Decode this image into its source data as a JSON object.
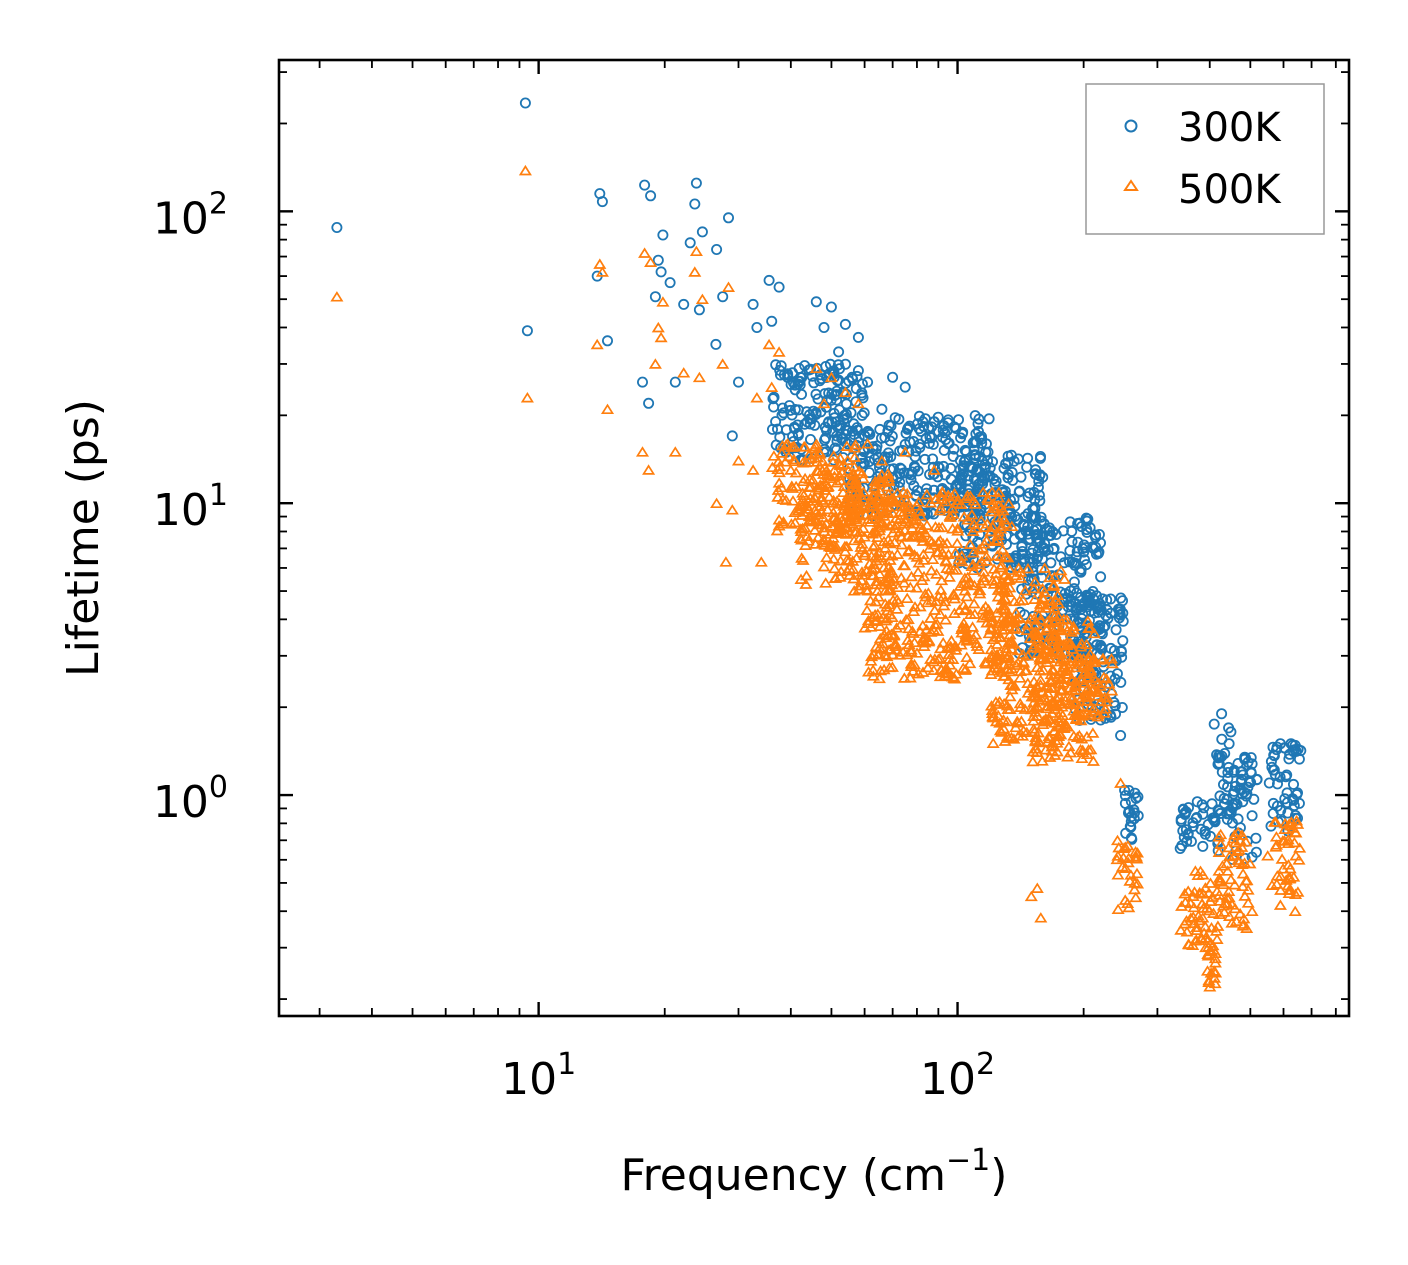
{
  "chart_data": {
    "type": "scatter",
    "title": "",
    "xlabel": "Frequency (cm",
    "xlabel_sup": "−1",
    "xlabel_close": ")",
    "ylabel": "Lifetime (ps)",
    "xscale": "log",
    "yscale": "log",
    "xlim": [
      2.4,
      860
    ],
    "ylim": [
      0.175,
      330
    ],
    "x_ticks": [
      {
        "value": 10,
        "base": "10",
        "exp": "1"
      },
      {
        "value": 100,
        "base": "10",
        "exp": "2"
      }
    ],
    "y_ticks": [
      {
        "value": 1,
        "base": "10",
        "exp": "0"
      },
      {
        "value": 10,
        "base": "10",
        "exp": "1"
      },
      {
        "value": 100,
        "base": "10",
        "exp": "2"
      }
    ],
    "legend_position": "top-right",
    "series": [
      {
        "name": "300K",
        "marker": "circle",
        "color": "#1f77b4",
        "points": [
          [
            3.3,
            88
          ],
          [
            9.3,
            235
          ],
          [
            9.4,
            39
          ],
          [
            13.8,
            60
          ],
          [
            14,
            115
          ],
          [
            14.2,
            108
          ],
          [
            14.6,
            36
          ],
          [
            17.7,
            26
          ],
          [
            17.9,
            123
          ],
          [
            18.3,
            22
          ],
          [
            18.5,
            113
          ],
          [
            19,
            51
          ],
          [
            19.3,
            68
          ],
          [
            19.6,
            62
          ],
          [
            19.8,
            83
          ],
          [
            20.6,
            57
          ],
          [
            21.2,
            26
          ],
          [
            22.2,
            48
          ],
          [
            23,
            78
          ],
          [
            23.6,
            106
          ],
          [
            23.8,
            125
          ],
          [
            24.2,
            46
          ],
          [
            24.6,
            85
          ],
          [
            26.6,
            74
          ],
          [
            26.5,
            35
          ],
          [
            27.5,
            51
          ],
          [
            28.4,
            95
          ],
          [
            29,
            17
          ],
          [
            30,
            26
          ],
          [
            32.5,
            48
          ],
          [
            33.2,
            40
          ],
          [
            35.5,
            58
          ],
          [
            36,
            42
          ],
          [
            37.5,
            55
          ],
          [
            39.3,
            27
          ],
          [
            46,
            49
          ],
          [
            48,
            40
          ],
          [
            50,
            47
          ],
          [
            52,
            33
          ],
          [
            54,
            41
          ],
          [
            56,
            27
          ],
          [
            58,
            37
          ],
          [
            61,
            26
          ],
          [
            66,
            21
          ],
          [
            70,
            27
          ],
          [
            75,
            25
          ],
          [
            81,
            18
          ],
          [
            88,
            19
          ],
          [
            95,
            16
          ],
          [
            105,
            15
          ],
          [
            118,
            14
          ],
          [
            130,
            11
          ],
          [
            150,
            9
          ],
          [
            170,
            7
          ],
          [
            185,
            6.3
          ],
          [
            197,
            5.8
          ],
          [
            205,
            4.6
          ],
          [
            225,
            3.8
          ],
          [
            235,
            2.9
          ],
          [
            245,
            1.6
          ],
          [
            260,
            0.95
          ],
          [
            270,
            0.85
          ],
          [
            355,
            0.73
          ],
          [
            385,
            0.86
          ],
          [
            410,
            1.75
          ],
          [
            427,
            1.9
          ],
          [
            445,
            1.5
          ],
          [
            475,
            1.2
          ],
          [
            505,
            0.85
          ],
          [
            555,
            1.1
          ],
          [
            590,
            1.5
          ],
          [
            640,
            1.48
          ],
          [
            660,
            1.42
          ]
        ],
        "bands": [
          {
            "x": [
              36,
              60
            ],
            "y": [
              14,
              30
            ]
          },
          {
            "x": [
              55,
              120
            ],
            "y": [
              9,
              20
            ]
          },
          {
            "x": [
              100,
              160
            ],
            "y": [
              6,
              15
            ]
          },
          {
            "x": [
              140,
              220
            ],
            "y": [
              3,
              9
            ]
          },
          {
            "x": [
              190,
              250
            ],
            "y": [
              1.8,
              5
            ]
          },
          {
            "x": [
              250,
              270
            ],
            "y": [
              0.7,
              1.1
            ]
          },
          {
            "x": [
              340,
              420
            ],
            "y": [
              0.62,
              0.95
            ]
          },
          {
            "x": [
              415,
              450
            ],
            "y": [
              0.8,
              1.9
            ]
          },
          {
            "x": [
              450,
              520
            ],
            "y": [
              0.6,
              1.35
            ]
          },
          {
            "x": [
              560,
              660
            ],
            "y": [
              0.75,
              1.5
            ]
          }
        ]
      },
      {
        "name": "500K",
        "marker": "triangle",
        "color": "#ff7f0e",
        "points": [
          [
            3.3,
            51
          ],
          [
            9.3,
            138
          ],
          [
            9.4,
            23
          ],
          [
            13.8,
            35
          ],
          [
            14,
            66
          ],
          [
            14.2,
            62
          ],
          [
            14.6,
            21
          ],
          [
            17.7,
            15
          ],
          [
            17.9,
            72
          ],
          [
            18.3,
            13
          ],
          [
            18.5,
            67
          ],
          [
            19,
            30
          ],
          [
            19.3,
            40
          ],
          [
            19.6,
            37
          ],
          [
            19.8,
            49
          ],
          [
            21.2,
            15
          ],
          [
            22.2,
            28
          ],
          [
            23.6,
            62
          ],
          [
            23.8,
            73
          ],
          [
            24.2,
            27
          ],
          [
            24.6,
            50
          ],
          [
            26.6,
            10
          ],
          [
            27.5,
            30
          ],
          [
            28.4,
            55
          ],
          [
            29,
            9.5
          ],
          [
            30,
            14
          ],
          [
            32.5,
            13
          ],
          [
            33.2,
            23
          ],
          [
            35.5,
            35
          ],
          [
            36,
            25
          ],
          [
            37.5,
            33
          ],
          [
            39.3,
            16
          ],
          [
            28,
            6.3
          ],
          [
            34,
            6.3
          ],
          [
            46,
            29
          ],
          [
            48,
            22
          ],
          [
            50,
            27
          ],
          [
            54,
            24
          ],
          [
            58,
            22
          ],
          [
            61,
            16
          ],
          [
            66,
            14
          ],
          [
            75,
            15
          ],
          [
            88,
            13
          ],
          [
            100,
            10
          ],
          [
            120,
            8
          ],
          [
            140,
            6
          ],
          [
            155,
            0.48
          ],
          [
            158,
            0.38
          ],
          [
            150,
            0.45
          ],
          [
            170,
            3.5
          ],
          [
            185,
            3.3
          ],
          [
            200,
            2.6
          ],
          [
            220,
            2.1
          ],
          [
            245,
            1.1
          ],
          [
            265,
            0.5
          ],
          [
            350,
            0.43
          ],
          [
            385,
            0.38
          ],
          [
            395,
            0.25
          ],
          [
            410,
            0.25
          ],
          [
            425,
            0.68
          ],
          [
            470,
            0.65
          ],
          [
            490,
            0.35
          ],
          [
            505,
            0.4
          ],
          [
            550,
            0.62
          ],
          [
            590,
            0.42
          ],
          [
            640,
            0.4
          ]
        ],
        "bands": [
          {
            "x": [
              36,
              58
            ],
            "y": [
              8,
              16
            ]
          },
          {
            "x": [
              42,
              70
            ],
            "y": [
              5,
              13
            ]
          },
          {
            "x": [
              60,
              135
            ],
            "y": [
              2.5,
              11
            ]
          },
          {
            "x": [
              120,
              180
            ],
            "y": [
              1.5,
              6
            ]
          },
          {
            "x": [
              150,
              215
            ],
            "y": [
              1.3,
              4
            ]
          },
          {
            "x": [
              175,
              235
            ],
            "y": [
              1.8,
              3
            ]
          },
          {
            "x": [
              240,
              270
            ],
            "y": [
              0.4,
              0.7
            ]
          },
          {
            "x": [
              340,
              420
            ],
            "y": [
              0.3,
              0.55
            ]
          },
          {
            "x": [
              395,
              415
            ],
            "y": [
              0.22,
              0.32
            ]
          },
          {
            "x": [
              420,
              500
            ],
            "y": [
              0.35,
              0.75
            ]
          },
          {
            "x": [
              560,
              660
            ],
            "y": [
              0.45,
              0.85
            ]
          }
        ]
      }
    ]
  }
}
